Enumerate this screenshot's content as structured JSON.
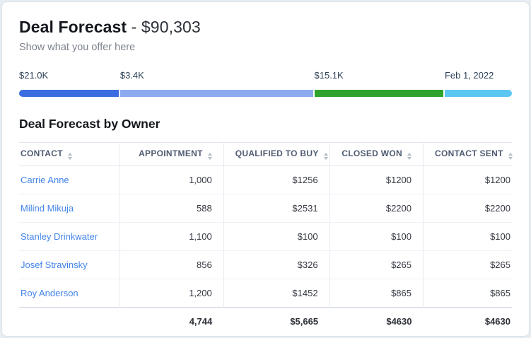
{
  "header": {
    "title": "Deal Forecast",
    "title_value": "- $90,303",
    "subtitle": "Show what you offer here"
  },
  "progress": {
    "segments": [
      {
        "label": "$21.0K",
        "color": "#3b6ce1",
        "percent": 20.3
      },
      {
        "label": "$3.4K",
        "color": "#8caaf0",
        "percent": 39.3
      },
      {
        "label": "$15.1K",
        "color": "#2ea32c",
        "percent": 26.3
      },
      {
        "label": "Feb 1, 2022",
        "color": "#5cc6f2",
        "percent": 13.7
      }
    ]
  },
  "section": {
    "title": "Deal Forecast by Owner"
  },
  "table": {
    "columns": [
      "CONTACT",
      "APPOINTMENT",
      "QUALIFIED TO BUY",
      "CLOSED WON",
      "CONTACT SENT"
    ],
    "rows": [
      {
        "contact": "Carrie Anne",
        "appointment": "1,000",
        "qualified_to_buy": "$1256",
        "closed_won": "$1200",
        "contact_sent": "$1200"
      },
      {
        "contact": "Milind Mikuja",
        "appointment": "588",
        "qualified_to_buy": "$2531",
        "closed_won": "$2200",
        "contact_sent": "$2200"
      },
      {
        "contact": "Stanley Drinkwater",
        "appointment": "1,100",
        "qualified_to_buy": "$100",
        "closed_won": "$100",
        "contact_sent": "$100"
      },
      {
        "contact": "Josef Stravinsky",
        "appointment": "856",
        "qualified_to_buy": "$326",
        "closed_won": "$265",
        "contact_sent": "$265"
      },
      {
        "contact": "Roy Anderson",
        "appointment": "1,200",
        "qualified_to_buy": "$1452",
        "closed_won": "$865",
        "contact_sent": "$865"
      }
    ],
    "totals": {
      "contact": "",
      "appointment": "4,744",
      "qualified_to_buy": "$5,665",
      "closed_won": "$4630",
      "contact_sent": "$4630"
    }
  },
  "colors": {
    "link_blue": "#4384ea",
    "header_text": "#4f5b72",
    "bar_label_text": "#2f4257",
    "card_border": "#dde3ec",
    "totals_divider": "#c9d1dc"
  }
}
